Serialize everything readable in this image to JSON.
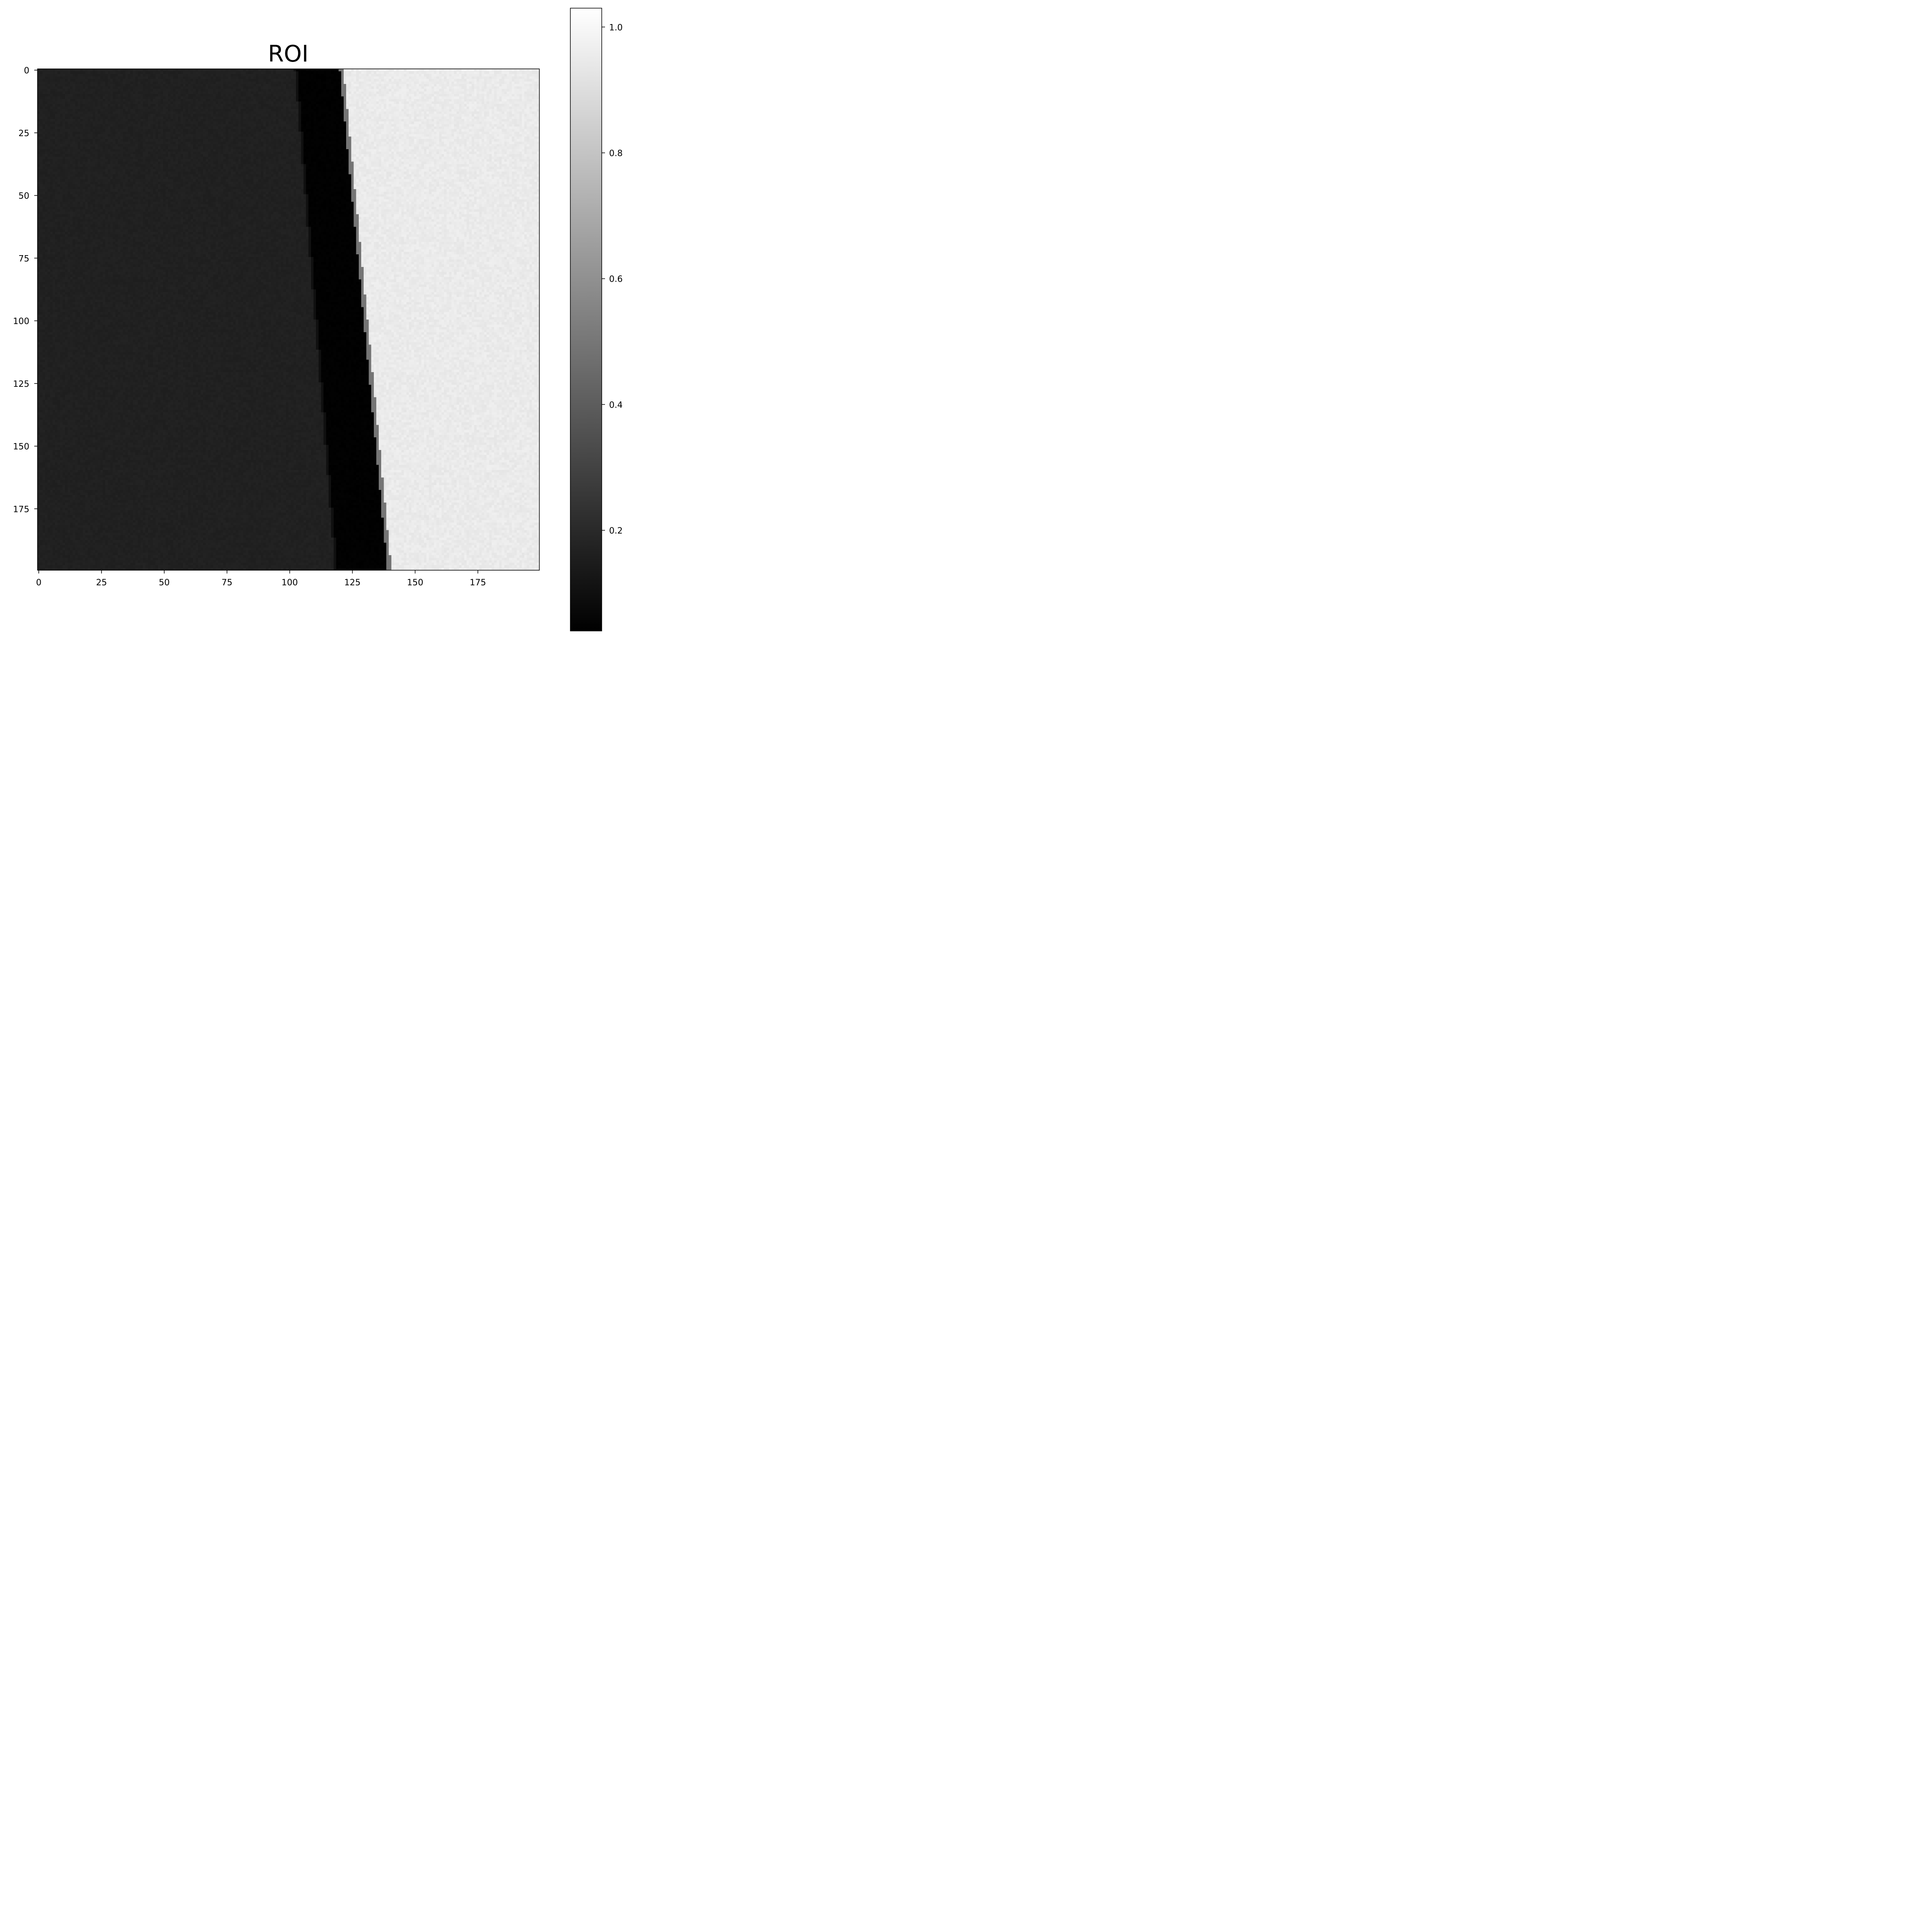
{
  "chart_data": {
    "type": "heatmap",
    "title": "ROI",
    "xlabel": "",
    "ylabel": "",
    "colormap": "gray",
    "xlim": [
      -0.5,
      199.5
    ],
    "ylim": [
      199.5,
      -0.5
    ],
    "x_ticks": [
      0,
      25,
      50,
      75,
      100,
      125,
      150,
      175
    ],
    "y_ticks": [
      0,
      25,
      50,
      75,
      100,
      125,
      150,
      175
    ],
    "x_tick_labels": [
      "0",
      "25",
      "50",
      "75",
      "100",
      "125",
      "150",
      "175"
    ],
    "y_tick_labels": [
      "0",
      "25",
      "50",
      "75",
      "100",
      "125",
      "150",
      "175"
    ],
    "colorbar": {
      "range": [
        0.04,
        1.03
      ],
      "ticks": [
        0.2,
        0.4,
        0.6,
        0.8,
        1.0
      ],
      "tick_labels": [
        "0.2",
        "0.4",
        "0.6",
        "0.8",
        "1.0"
      ]
    },
    "regions": {
      "left_plate_value": 0.165,
      "gap_value": 0.04,
      "right_background_value": 0.95,
      "gap_left_edge": {
        "row0": 103,
        "row199": 119
      },
      "gap_right_edge": {
        "row0": 120,
        "row199": 139
      }
    },
    "grid": false,
    "legend": "none"
  },
  "colors": {
    "frame": "#000000",
    "text": "#000000"
  }
}
